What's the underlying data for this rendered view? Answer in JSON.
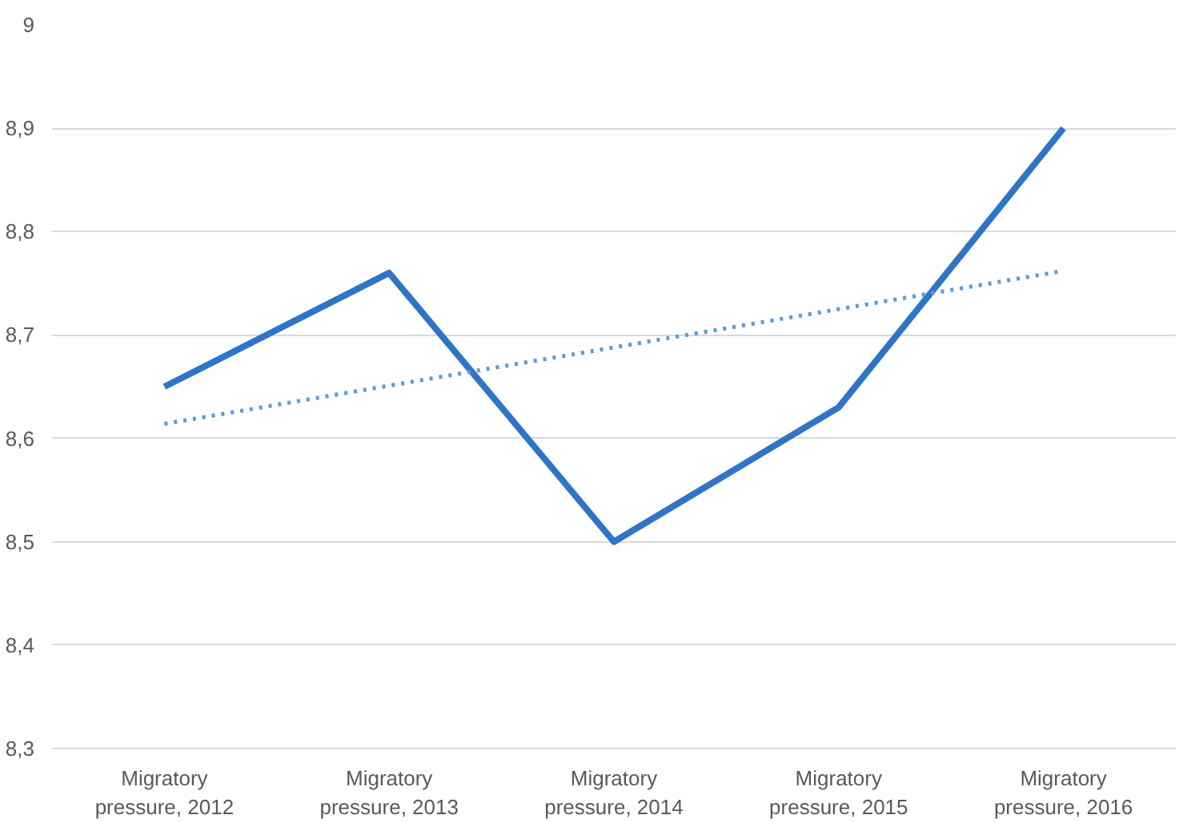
{
  "chart_data": {
    "type": "line",
    "categories": [
      "Migratory pressure, 2012",
      "Migratory pressure, 2013",
      "Migratory pressure, 2014",
      "Migratory pressure, 2015",
      "Migratory pressure, 2016"
    ],
    "series": [
      {
        "color": "#2e75c6",
        "values": [
          8.65,
          8.76,
          8.5,
          8.63,
          8.9
        ],
        "line_style": "solid"
      },
      {
        "color": "#5b9bd5",
        "values": [
          8.614,
          8.651,
          8.688,
          8.725,
          8.762
        ],
        "line_style": "dotted"
      }
    ],
    "ylim": [
      8.3,
      9
    ],
    "yticks": [
      {
        "value": 8.3,
        "label": "8,3"
      },
      {
        "value": 8.4,
        "label": "8,4"
      },
      {
        "value": 8.5,
        "label": "8,5"
      },
      {
        "value": 8.6,
        "label": "8,6"
      },
      {
        "value": 8.7,
        "label": "8,7"
      },
      {
        "value": 8.8,
        "label": "8,8"
      },
      {
        "value": 8.9,
        "label": "8,9"
      },
      9
    ],
    "grid": "y",
    "marker": "none"
  }
}
